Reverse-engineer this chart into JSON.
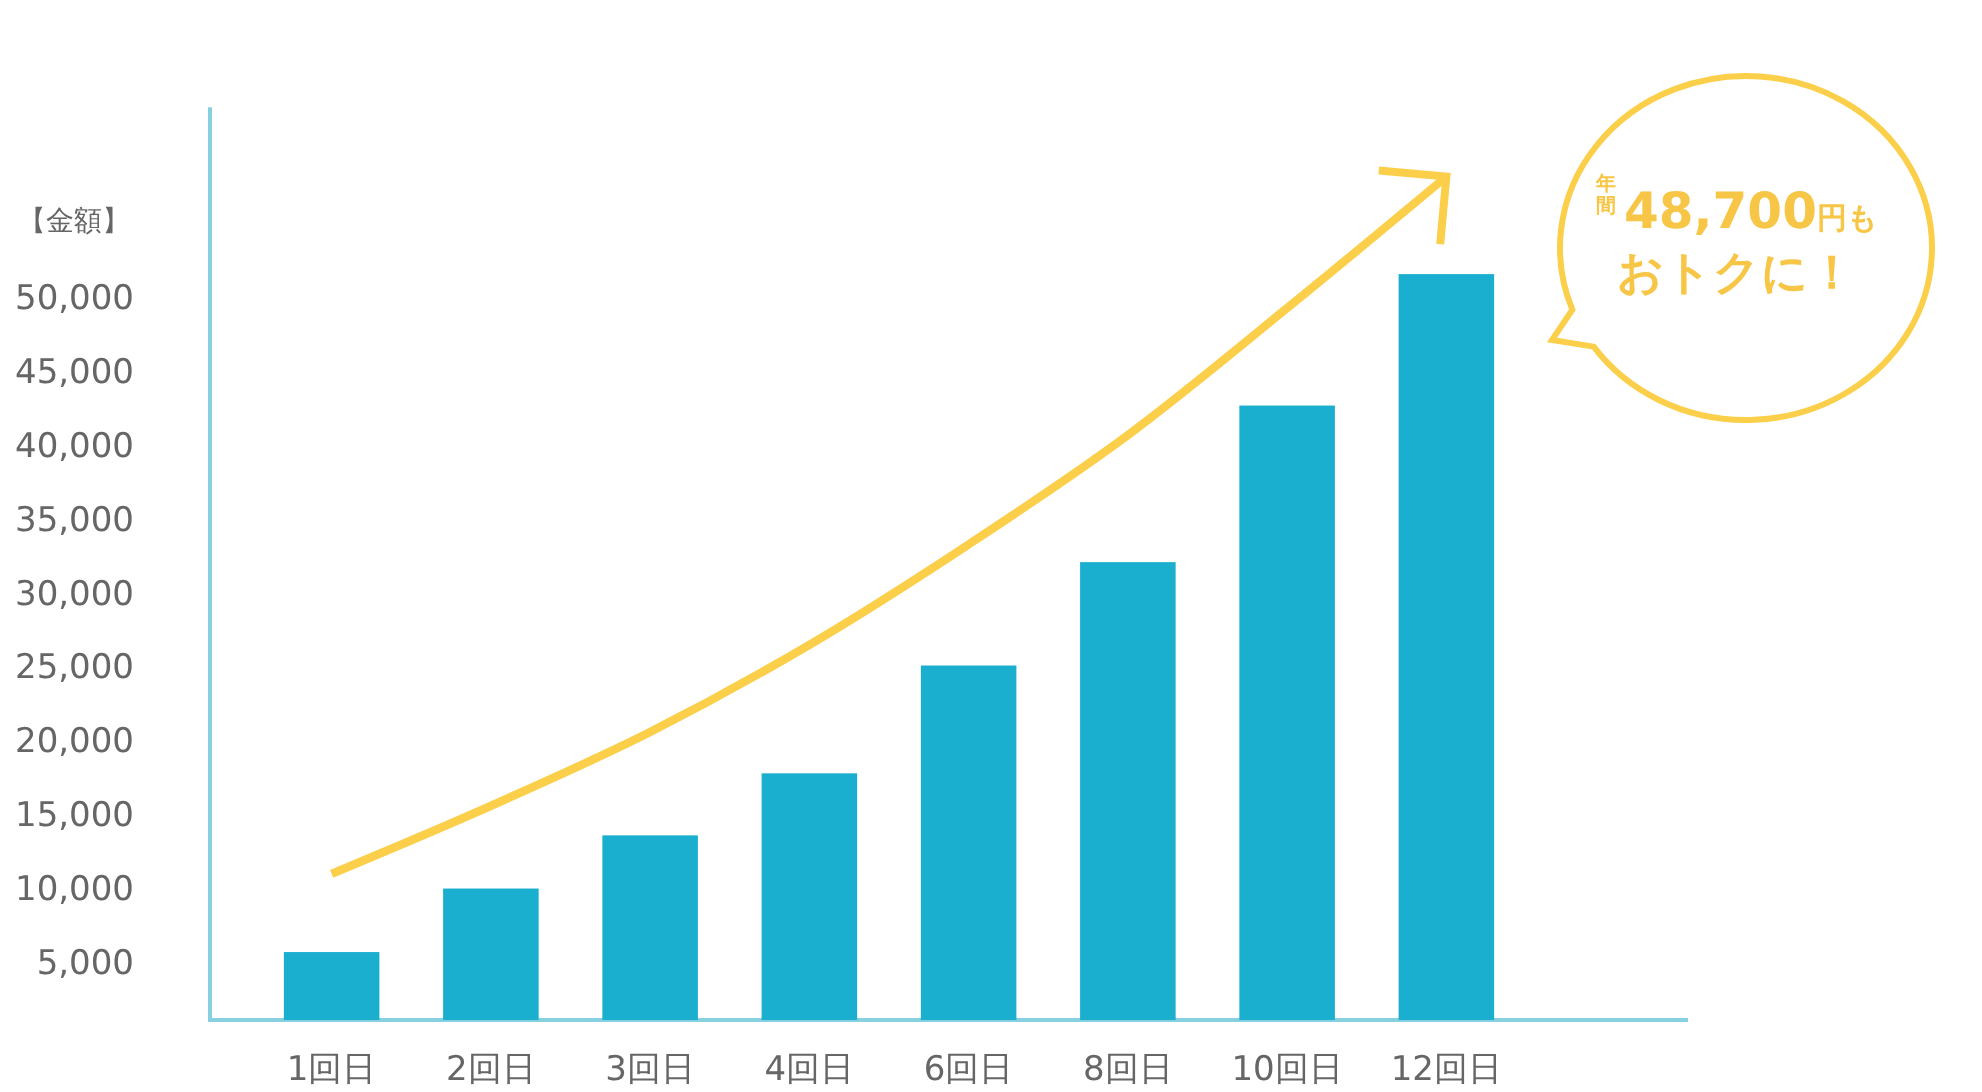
{
  "chart_data": {
    "type": "bar",
    "ylabel": "【金額】",
    "categories": [
      "1回日",
      "2回日",
      "3回日",
      "4回日",
      "6回日",
      "8回日",
      "10回日",
      "12回日"
    ],
    "series": [
      {
        "color": "#1aafcf",
        "values": [
          5800,
          10100,
          13700,
          17900,
          25200,
          32200,
          42800,
          51700
        ]
      },
      {
        "type": "line",
        "color": "#fccf4a",
        "values": [
          11100,
          15700,
          20700,
          26600,
          33400,
          40800,
          49400,
          58300
        ]
      }
    ],
    "ylim": [
      1200,
      63000
    ],
    "yticks": [
      {
        "value": 5000,
        "label": "5,000"
      },
      {
        "value": 10000,
        "label": "10,000"
      },
      {
        "value": 15000,
        "label": "15,000"
      },
      {
        "value": 20000,
        "label": "20,000"
      },
      {
        "value": 25000,
        "label": "25,000"
      },
      {
        "value": 30000,
        "label": "30,000"
      },
      {
        "value": 35000,
        "label": "35,000"
      },
      {
        "value": 40000,
        "label": "40,000"
      },
      {
        "value": 45000,
        "label": "45,000"
      },
      {
        "value": 50000,
        "label": "50,000"
      }
    ],
    "annotations": [
      "年間",
      "48,700",
      "円も",
      "おトクに！"
    ]
  }
}
